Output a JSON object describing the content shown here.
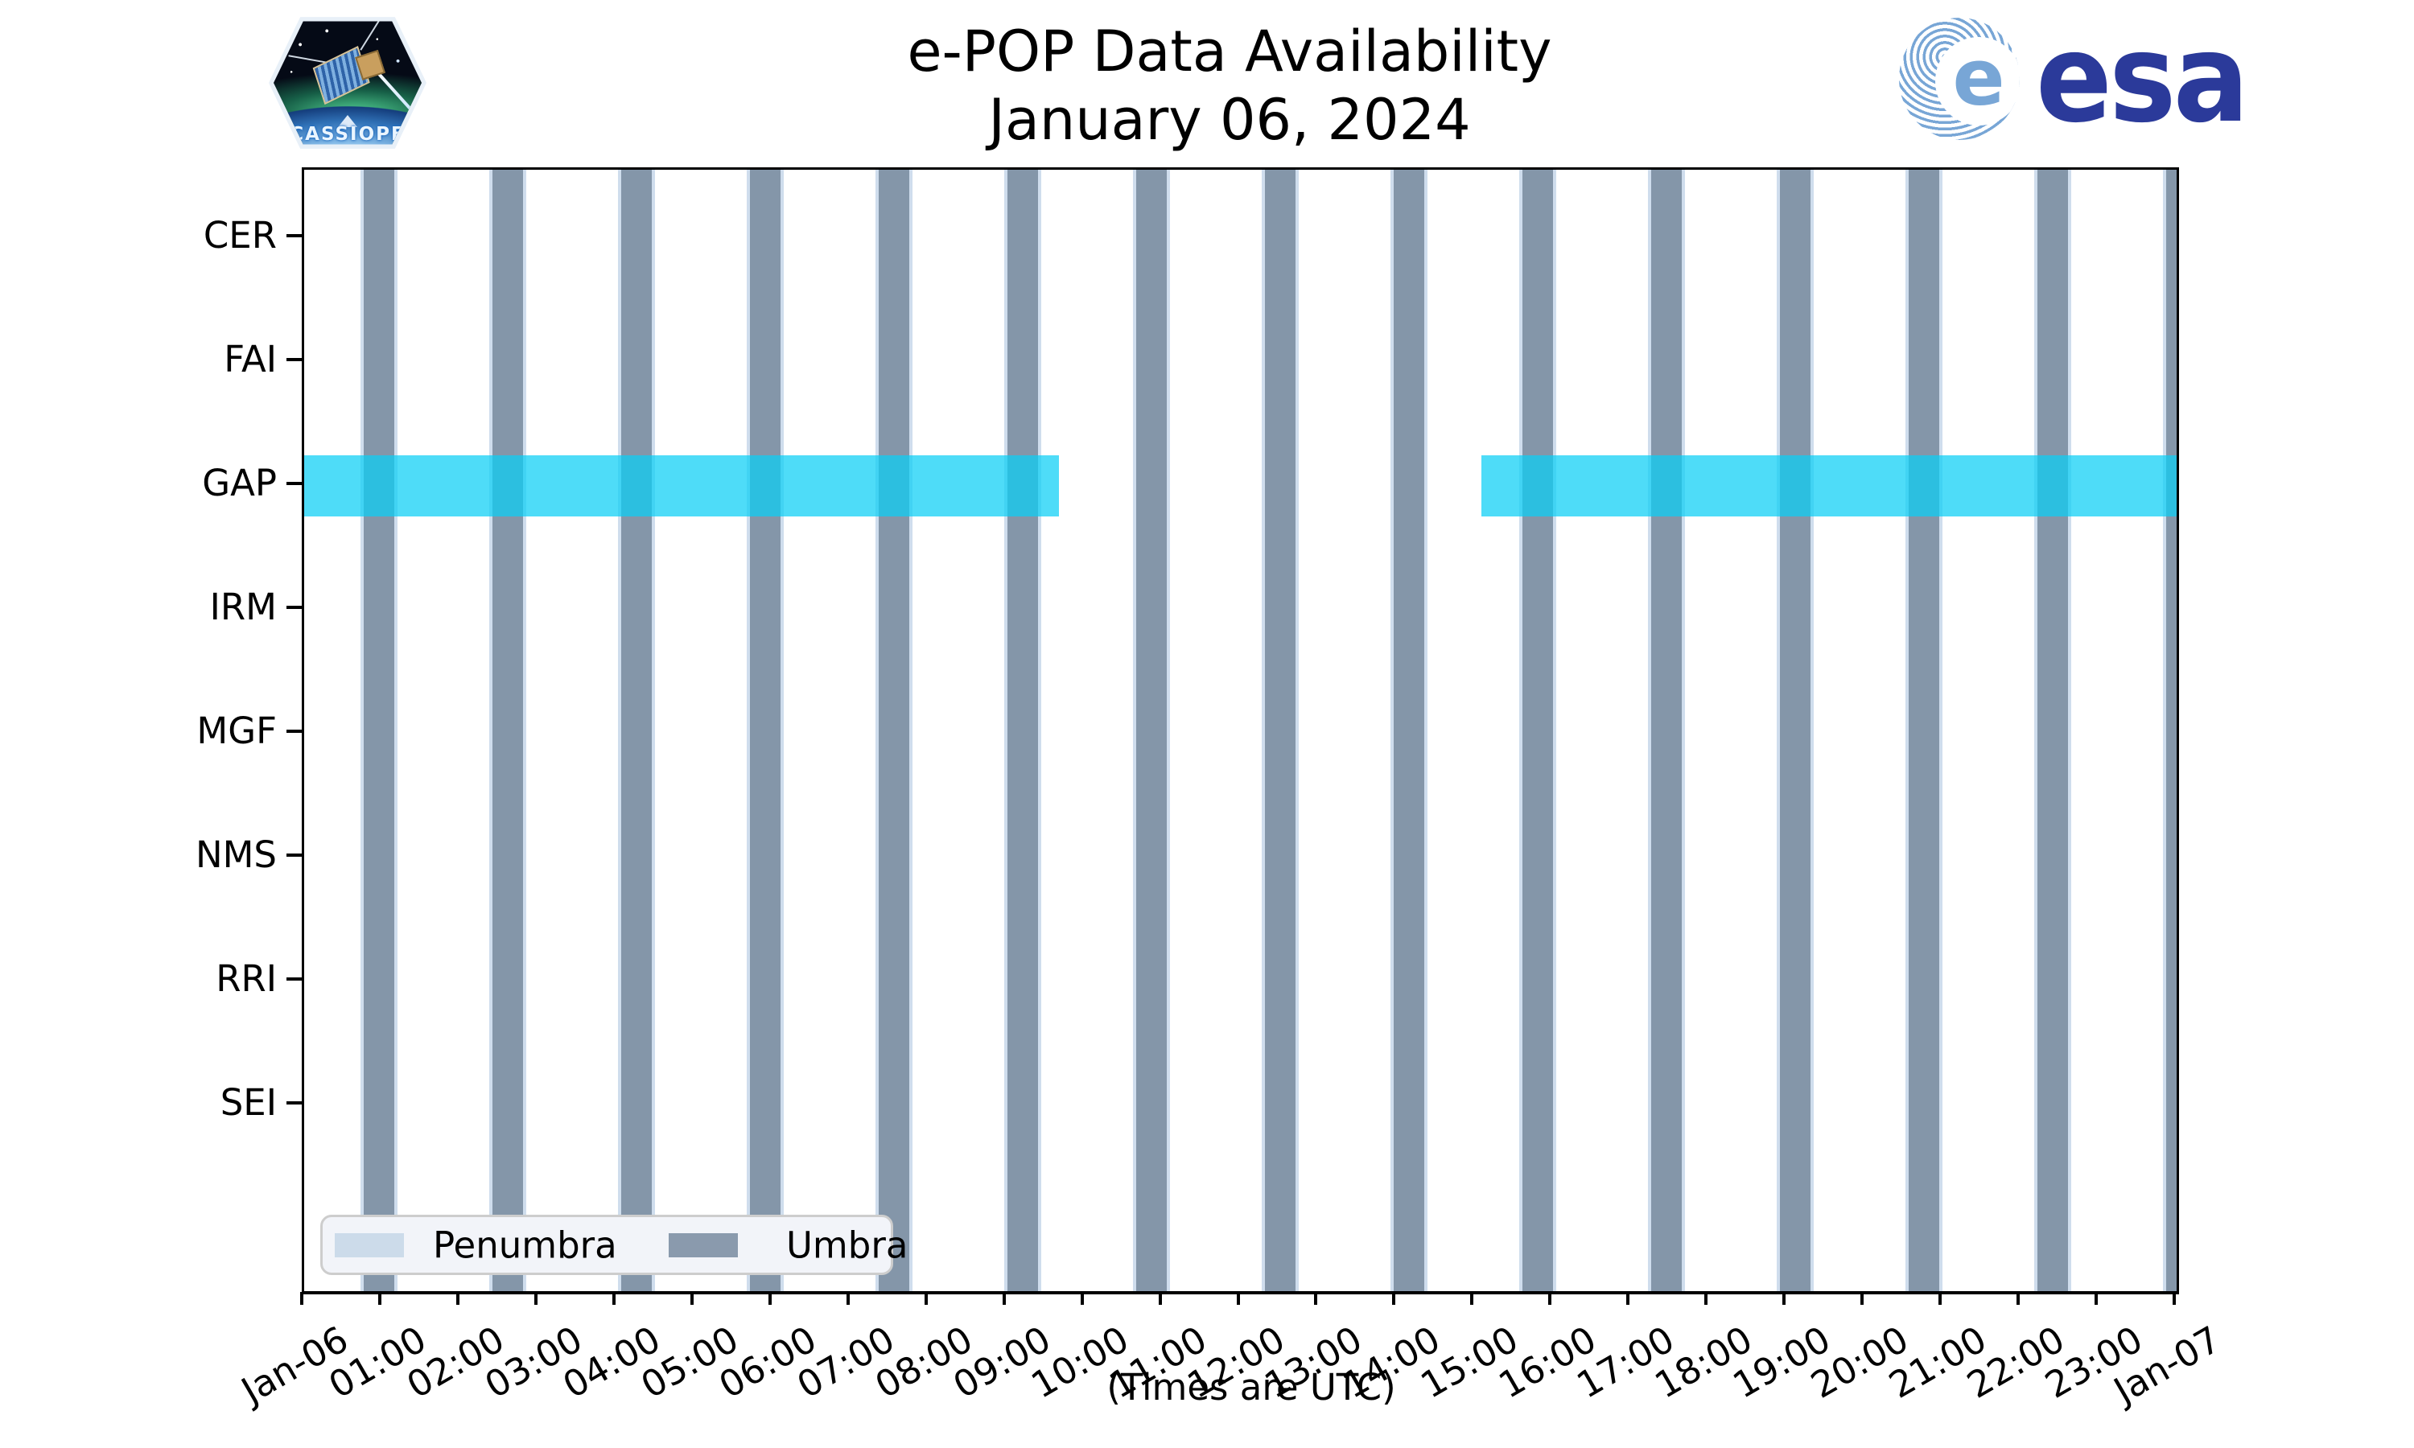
{
  "header": {
    "cassiope_patch_label": "CASSIOPE",
    "esa_wordmark": "esa",
    "esa_globe_letter": "e"
  },
  "chart_data": {
    "type": "timeline",
    "title": "e-POP Data Availability",
    "subtitle": "January 06, 2024",
    "xlabel": "(Times are UTC)",
    "instruments": [
      "CER",
      "FAI",
      "GAP",
      "IRM",
      "MGF",
      "NMS",
      "RRI",
      "SEI"
    ],
    "x_axis": {
      "start_label": "Jan-06",
      "end_label": "Jan-07",
      "hours_span": 24,
      "tick_labels": [
        "Jan-06",
        "01:00",
        "02:00",
        "03:00",
        "04:00",
        "05:00",
        "06:00",
        "07:00",
        "08:00",
        "09:00",
        "10:00",
        "11:00",
        "12:00",
        "13:00",
        "14:00",
        "15:00",
        "16:00",
        "17:00",
        "18:00",
        "19:00",
        "20:00",
        "21:00",
        "22:00",
        "23:00",
        "Jan-07"
      ]
    },
    "availability_segments": [
      {
        "instrument": "GAP",
        "start_hour": 0.0,
        "end_hour": 9.67
      },
      {
        "instrument": "GAP",
        "start_hour": 15.09,
        "end_hour": 24.0
      }
    ],
    "umbra_intervals": {
      "center_hours": [
        0.96,
        2.61,
        4.26,
        5.91,
        7.56,
        9.21,
        10.86,
        12.51,
        14.16,
        15.81,
        17.46,
        19.11,
        20.76,
        22.41,
        24.06
      ],
      "width_hours": 0.39
    },
    "penumbra_edge_width_hours": 0.045,
    "legend": {
      "items": [
        {
          "label": "Penumbra",
          "color": "#ccdbea"
        },
        {
          "label": "Umbra",
          "color": "#8a9aad"
        }
      ]
    },
    "colors": {
      "umbra": "#8496a9",
      "penumbra": "#cfdded",
      "availability": "rgba(10,206,245,0.72)",
      "legend_bg": "#f2f4f9",
      "esa_blue": "#2b3a9a",
      "esa_stripe": "#78a6d6"
    }
  }
}
